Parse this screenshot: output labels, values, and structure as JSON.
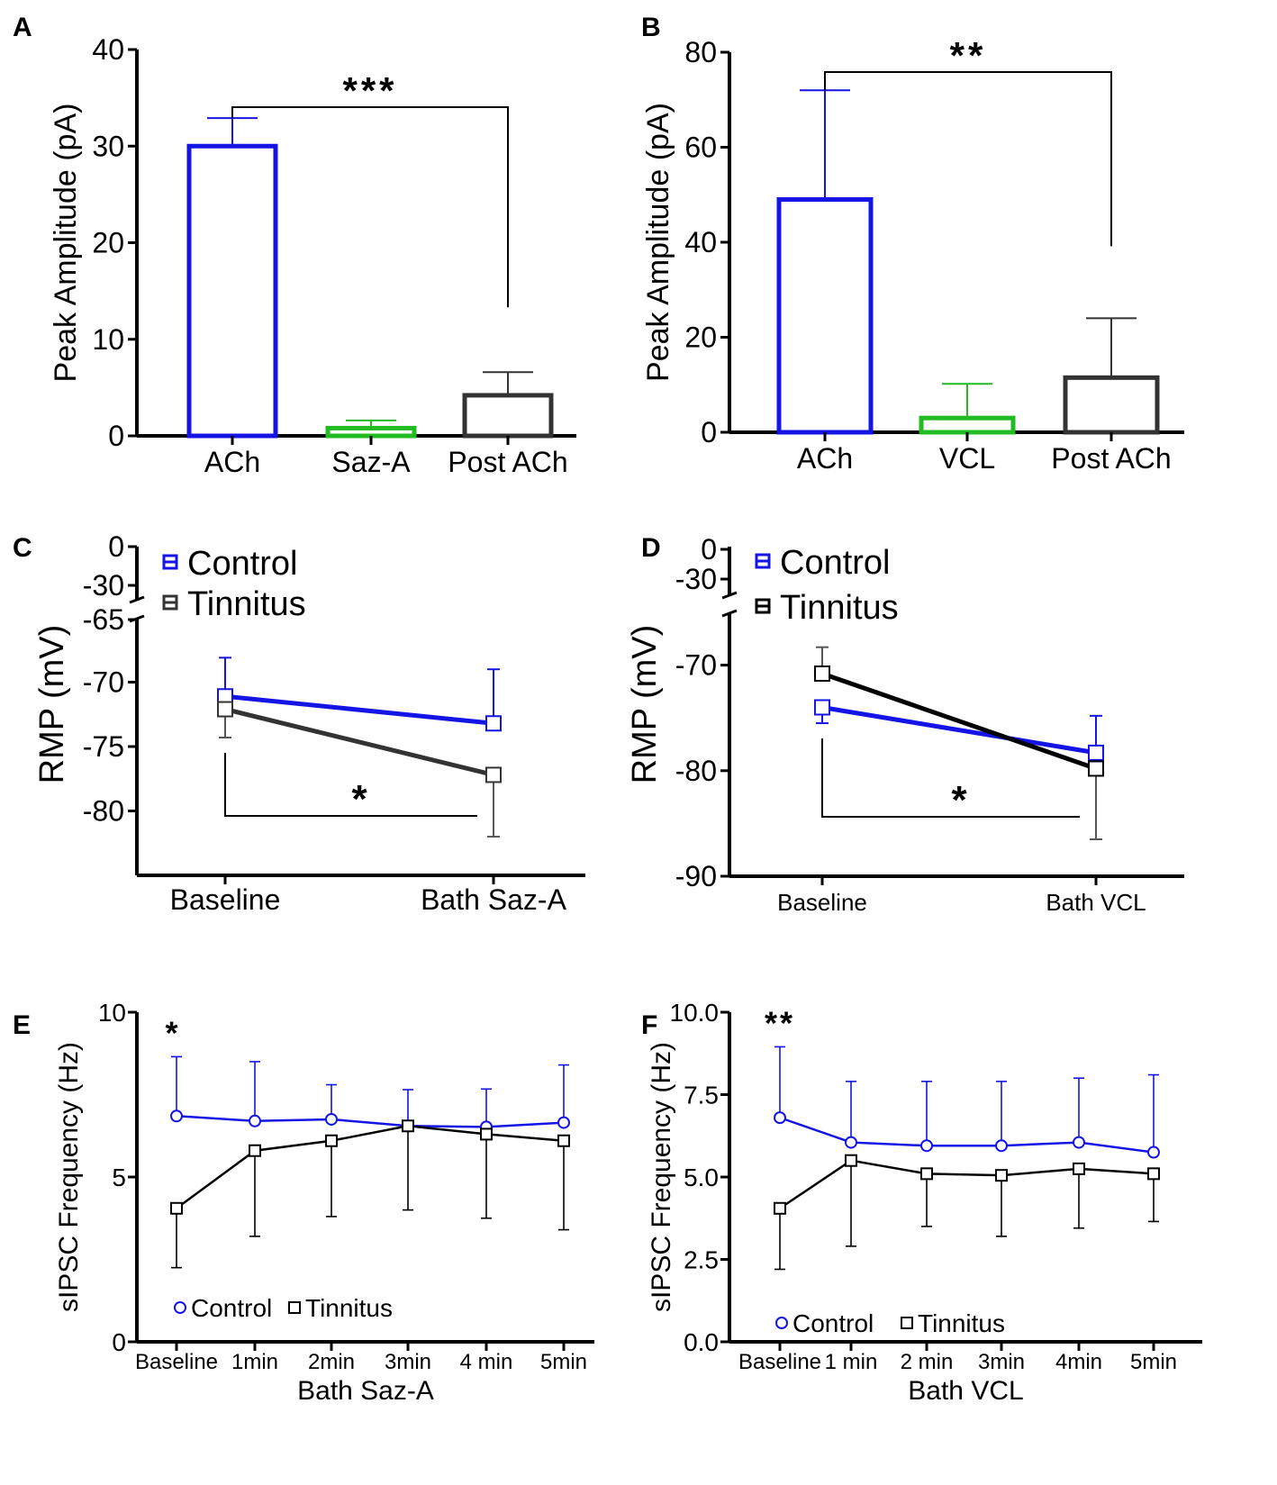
{
  "colors": {
    "control": "#1414e6",
    "tinnitus_c": "#333333",
    "tinnitus_d": "#000000",
    "green": "#22bb22",
    "axis": "#000000"
  },
  "chart_data": [
    {
      "panel": "A",
      "type": "bar",
      "ylabel": "Peak Amplitude (pA)",
      "ylim": [
        0,
        40
      ],
      "yticks": [
        0,
        10,
        20,
        30,
        40
      ],
      "categories": [
        "ACh",
        "Saz-A",
        "Post ACh"
      ],
      "values": [
        30,
        0.8,
        4.2
      ],
      "errors": [
        2.9,
        0.8,
        2.4
      ],
      "bar_colors": [
        "#1414e6",
        "#22bb22",
        "#333333"
      ],
      "significance": {
        "from": 0,
        "to": 2,
        "label": "***"
      }
    },
    {
      "panel": "B",
      "type": "bar",
      "ylabel": "Peak Amplitude (pA)",
      "ylim": [
        0,
        80
      ],
      "yticks": [
        0,
        20,
        40,
        60,
        80
      ],
      "categories": [
        "ACh",
        "VCL",
        "Post ACh"
      ],
      "values": [
        49,
        3,
        11.5
      ],
      "errors": [
        23,
        7.2,
        12.5
      ],
      "bar_colors": [
        "#1414e6",
        "#22bb22",
        "#333333"
      ],
      "significance": {
        "from": 0,
        "to": 2,
        "label": "**"
      }
    },
    {
      "panel": "C",
      "type": "line",
      "ylabel": "RMP (mV)",
      "broken_axis_upper_ticks": [
        "0",
        "-30",
        "-65"
      ],
      "ylim": [
        -85,
        -65
      ],
      "yticks": [
        -70,
        -75,
        -80
      ],
      "categories": [
        "Baseline",
        "Bath Saz-A"
      ],
      "series": [
        {
          "name": "Control",
          "values": [
            -71.1,
            -73.2
          ],
          "errors": [
            3.0,
            4.2
          ],
          "color": "#1414e6"
        },
        {
          "name": "Tinnitus",
          "values": [
            -72.1,
            -77.2
          ],
          "errors": [
            2.2,
            4.8
          ],
          "color": "#333333"
        }
      ],
      "significance": {
        "label": "*"
      },
      "legend": "top-left"
    },
    {
      "panel": "D",
      "type": "line",
      "ylabel": "RMP (mV)",
      "broken_axis_upper_ticks": [
        "0",
        "-30"
      ],
      "ylim": [
        -90,
        -65
      ],
      "yticks": [
        -70,
        -80,
        -90
      ],
      "categories": [
        "Baseline",
        "Bath VCL"
      ],
      "series": [
        {
          "name": "Control",
          "values": [
            -74,
            -78.3
          ],
          "errors": [
            1.5,
            3.5
          ],
          "color": "#1414e6"
        },
        {
          "name": "Tinnitus",
          "values": [
            -70.8,
            -79.8
          ],
          "errors": [
            2.5,
            6.7
          ],
          "color": "#000000"
        }
      ],
      "significance": {
        "label": "*"
      },
      "legend": "top-left"
    },
    {
      "panel": "E",
      "type": "line",
      "ylabel": "sIPSC Frequency (Hz)",
      "xlabel": "Bath Saz-A",
      "ylim": [
        0,
        10
      ],
      "yticks": [
        "0",
        "5",
        "10"
      ],
      "ytick_values": [
        0,
        5,
        10
      ],
      "categories": [
        "Baseline",
        "1min",
        "2min",
        "3min",
        "4 min",
        "5min"
      ],
      "series": [
        {
          "name": "Control",
          "values": [
            6.85,
            6.7,
            6.75,
            6.55,
            6.52,
            6.65
          ],
          "errors": [
            1.8,
            1.8,
            1.05,
            1.1,
            1.15,
            1.75
          ],
          "color": "#1414e6",
          "marker": "circle"
        },
        {
          "name": "Tinnitus",
          "values": [
            4.05,
            5.8,
            6.1,
            6.55,
            6.3,
            6.1
          ],
          "errors": [
            1.8,
            2.6,
            2.3,
            2.55,
            2.55,
            2.7
          ],
          "color": "#000000",
          "marker": "square"
        }
      ],
      "significance": {
        "label": "*",
        "at": 0
      },
      "legend": "bottom-left"
    },
    {
      "panel": "F",
      "type": "line",
      "ylabel": "sIPSC Frequency (Hz)",
      "xlabel": "Bath VCL",
      "ylim": [
        0,
        10
      ],
      "yticks": [
        "0.0",
        "2.5",
        "5.0",
        "7.5",
        "10.0"
      ],
      "ytick_values": [
        0,
        2.5,
        5,
        7.5,
        10
      ],
      "categories": [
        "Baseline",
        "1 min",
        "2 min",
        "3min",
        "4min",
        "5min"
      ],
      "series": [
        {
          "name": "Control",
          "values": [
            6.8,
            6.05,
            5.95,
            5.95,
            6.05,
            5.75
          ],
          "errors": [
            2.15,
            1.85,
            1.95,
            1.95,
            1.95,
            2.35
          ],
          "color": "#1414e6",
          "marker": "circle"
        },
        {
          "name": "Tinnitus",
          "values": [
            4.05,
            5.5,
            5.1,
            5.05,
            5.25,
            5.1
          ],
          "errors": [
            1.85,
            2.6,
            1.6,
            1.85,
            1.8,
            1.45
          ],
          "color": "#000000",
          "marker": "square"
        }
      ],
      "significance": {
        "label": "**",
        "at": 0
      },
      "legend": "bottom-left"
    }
  ]
}
